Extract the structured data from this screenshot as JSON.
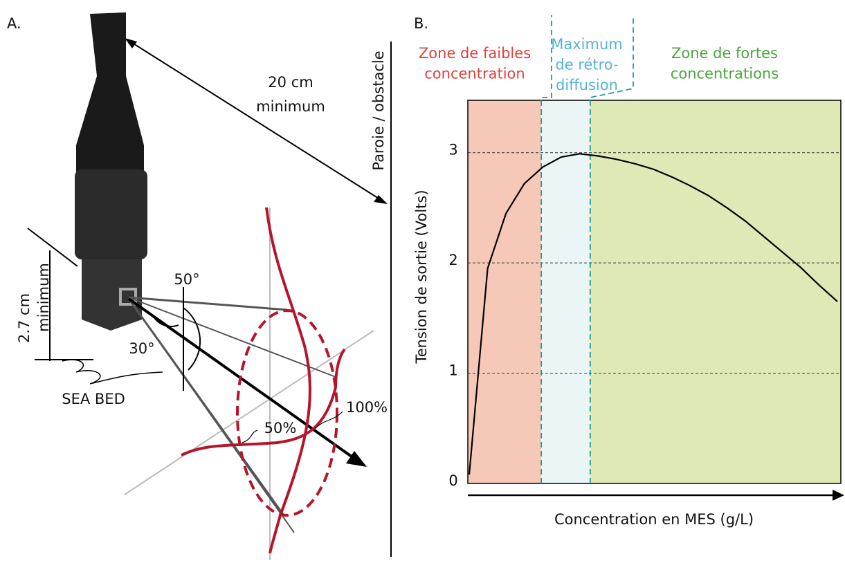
{
  "panel_a": {
    "label": "A.",
    "distance_label": [
      "20 cm",
      "minimum"
    ],
    "wall_label": "Paroie / obstacle",
    "height_label": [
      "2.7 cm",
      "minimum"
    ],
    "angle_wide": "50°",
    "angle_narrow": "30°",
    "seabed_label": "SEA BED",
    "half_label": "50%",
    "full_label": "100%"
  },
  "chart_data": {
    "type": "line",
    "panel_label": "B.",
    "y_label": "Tension de sortie (Volts)",
    "x_label": "Concentration en MES (g/L)",
    "zones": [
      {
        "label": [
          "Zone de faibles",
          "concentration"
        ],
        "color": "#f6c8b8",
        "text_color": "#e0413a"
      },
      {
        "label": [
          "Maximum",
          "de rétro-",
          "diffusion"
        ],
        "color": "#eaf5f5",
        "text_color": "#56b3d6"
      },
      {
        "label": [
          "Zone de fortes",
          "concentrations"
        ],
        "color": "#dfe9b6",
        "text_color": "#4aa63c"
      }
    ],
    "categories": [
      null,
      null,
      null,
      null,
      null,
      null,
      null,
      null,
      null,
      null,
      null,
      null,
      null,
      null,
      null,
      null,
      null,
      null,
      null,
      null,
      null
    ],
    "series": [
      {
        "name": null,
        "color": "#000000",
        "values": [
          0.08,
          1.95,
          2.45,
          2.72,
          2.87,
          2.96,
          2.99,
          2.97,
          2.94,
          2.9,
          2.85,
          2.78,
          2.7,
          2.61,
          2.5,
          2.38,
          2.24,
          2.1,
          1.96,
          1.8,
          1.65
        ]
      }
    ],
    "ylim": [
      0,
      3.5
    ],
    "yticks": [
      0,
      1,
      2,
      3
    ],
    "grid": true
  }
}
